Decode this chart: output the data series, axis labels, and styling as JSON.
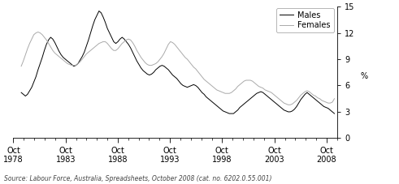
{
  "source": "Source: Labour Force, Australia, Spreadsheets, October 2008 (cat. no. 6202.0.55.001)",
  "ylabel": "%",
  "ylim": [
    0,
    15
  ],
  "yticks": [
    0,
    3,
    6,
    9,
    12,
    15
  ],
  "xtick_years": [
    1978,
    1983,
    1988,
    1993,
    1998,
    2003,
    2008
  ],
  "male_color": "#000000",
  "female_color": "#aaaaaa",
  "background_color": "#ffffff",
  "males": [
    5.2,
    5.0,
    4.8,
    5.0,
    5.4,
    5.8,
    6.4,
    7.0,
    7.8,
    8.5,
    9.2,
    10.0,
    10.7,
    11.2,
    11.5,
    11.3,
    10.9,
    10.4,
    9.9,
    9.5,
    9.2,
    9.0,
    8.8,
    8.6,
    8.4,
    8.2,
    8.3,
    8.5,
    8.9,
    9.3,
    9.8,
    10.5,
    11.2,
    12.0,
    12.8,
    13.5,
    14.0,
    14.5,
    14.3,
    13.8,
    13.2,
    12.5,
    12.0,
    11.5,
    11.0,
    10.8,
    11.0,
    11.3,
    11.5,
    11.3,
    11.0,
    10.7,
    10.3,
    9.8,
    9.3,
    8.8,
    8.4,
    8.0,
    7.7,
    7.5,
    7.3,
    7.2,
    7.3,
    7.5,
    7.8,
    8.0,
    8.2,
    8.3,
    8.2,
    8.0,
    7.8,
    7.5,
    7.2,
    7.0,
    6.8,
    6.5,
    6.2,
    6.0,
    5.9,
    5.8,
    5.9,
    6.0,
    6.1,
    6.0,
    5.8,
    5.5,
    5.2,
    5.0,
    4.7,
    4.5,
    4.3,
    4.1,
    3.9,
    3.7,
    3.5,
    3.3,
    3.1,
    3.0,
    2.9,
    2.8,
    2.8,
    2.8,
    3.0,
    3.2,
    3.5,
    3.7,
    3.9,
    4.1,
    4.3,
    4.5,
    4.7,
    4.9,
    5.1,
    5.2,
    5.3,
    5.2,
    5.0,
    4.8,
    4.6,
    4.4,
    4.2,
    4.0,
    3.8,
    3.6,
    3.4,
    3.2,
    3.1,
    3.0,
    3.0,
    3.1,
    3.3,
    3.6,
    4.0,
    4.4,
    4.7,
    5.0,
    5.2,
    5.0,
    4.8,
    4.6,
    4.4,
    4.2,
    4.0,
    3.8,
    3.6,
    3.5,
    3.4,
    3.2,
    3.0,
    2.8
  ],
  "females": [
    8.2,
    8.8,
    9.5,
    10.2,
    10.8,
    11.3,
    11.8,
    12.0,
    12.1,
    12.0,
    11.8,
    11.5,
    11.2,
    10.8,
    10.4,
    10.0,
    9.7,
    9.5,
    9.3,
    9.1,
    8.9,
    8.7,
    8.5,
    8.4,
    8.3,
    8.3,
    8.3,
    8.5,
    8.7,
    9.0,
    9.3,
    9.6,
    9.8,
    10.0,
    10.2,
    10.4,
    10.6,
    10.8,
    10.9,
    11.0,
    11.0,
    10.8,
    10.5,
    10.2,
    10.0,
    10.0,
    10.2,
    10.5,
    10.8,
    11.0,
    11.2,
    11.3,
    11.2,
    10.9,
    10.5,
    10.0,
    9.6,
    9.2,
    8.9,
    8.6,
    8.4,
    8.3,
    8.3,
    8.4,
    8.5,
    8.7,
    9.0,
    9.3,
    9.7,
    10.2,
    10.7,
    11.0,
    10.9,
    10.7,
    10.4,
    10.1,
    9.8,
    9.5,
    9.2,
    9.0,
    8.7,
    8.4,
    8.1,
    7.9,
    7.6,
    7.3,
    7.0,
    6.7,
    6.5,
    6.3,
    6.1,
    5.9,
    5.7,
    5.5,
    5.4,
    5.3,
    5.2,
    5.1,
    5.1,
    5.1,
    5.2,
    5.4,
    5.6,
    5.9,
    6.1,
    6.3,
    6.5,
    6.6,
    6.6,
    6.6,
    6.5,
    6.3,
    6.1,
    5.9,
    5.8,
    5.7,
    5.5,
    5.4,
    5.3,
    5.2,
    5.0,
    4.8,
    4.6,
    4.4,
    4.2,
    4.0,
    3.9,
    3.8,
    3.8,
    3.9,
    4.1,
    4.3,
    4.6,
    4.9,
    5.1,
    5.3,
    5.4,
    5.3,
    5.1,
    4.9,
    4.8,
    4.6,
    4.5,
    4.3,
    4.2,
    4.1,
    4.0,
    4.0,
    4.1,
    4.5
  ],
  "n_points": 150,
  "start_year": 1978.75,
  "end_year": 2008.75
}
